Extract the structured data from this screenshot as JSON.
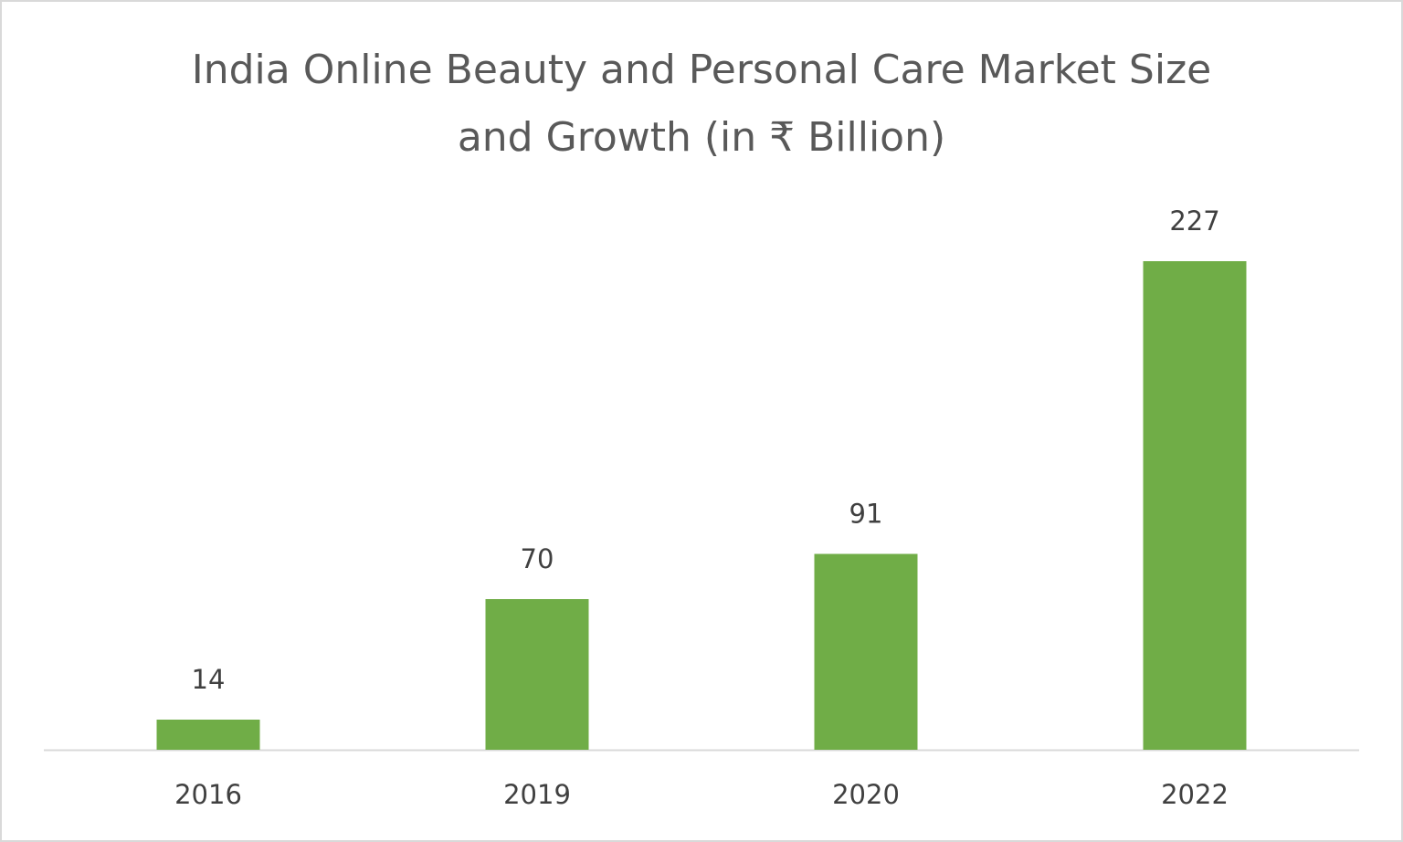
{
  "chart_data": {
    "type": "bar",
    "title": "India Online Beauty and Personal Care Market Size and Growth (in ₹ Billion)",
    "categories": [
      "2016",
      "2019",
      "2020",
      "2022"
    ],
    "values": [
      14,
      70,
      91,
      227
    ],
    "color": "#70ad47"
  }
}
